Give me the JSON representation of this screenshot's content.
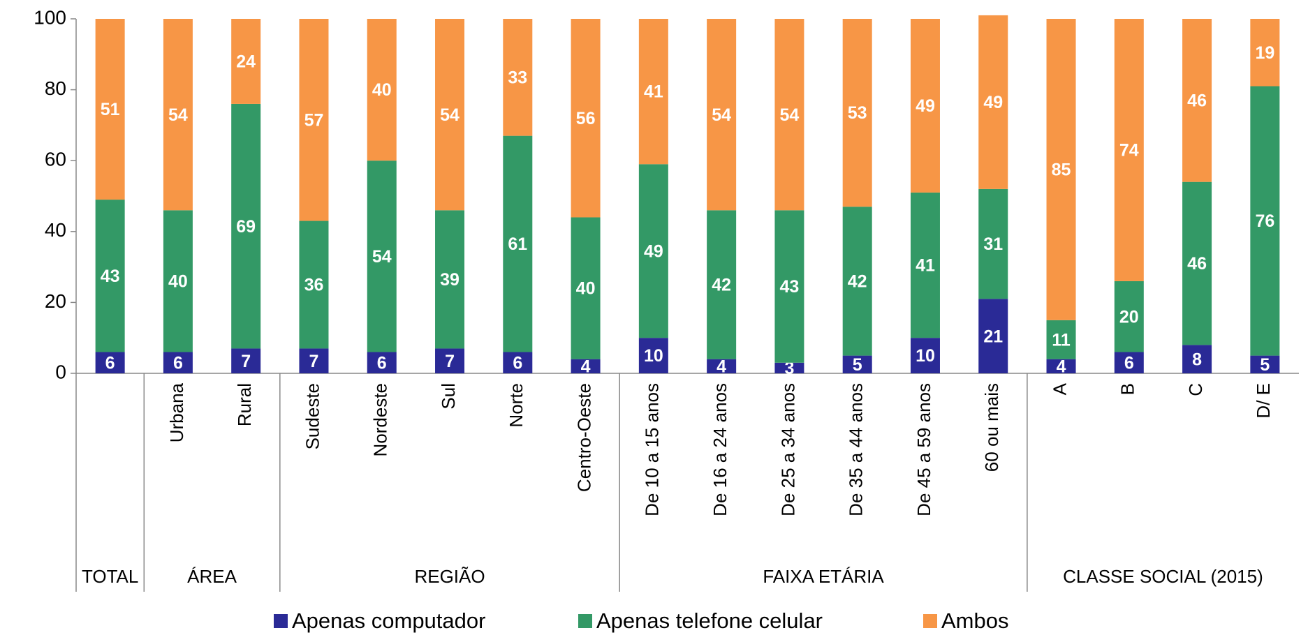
{
  "chart_data": {
    "type": "stacked_bar",
    "categories": [
      null,
      "Urbana",
      "Rural",
      "Sudeste",
      "Nordeste",
      "Sul",
      "Norte",
      "Centro-Oeste",
      "De 10 a 15 anos",
      "De 16 a 24 anos",
      "De 25 a 34 anos",
      "De 35 a 44 anos",
      "De 45 a 59 anos",
      "60 ou mais",
      "A",
      "B",
      "C",
      "D/ E"
    ],
    "groups": [
      {
        "name": "TOTAL",
        "count": 1
      },
      {
        "name": "ÁREA",
        "count": 2
      },
      {
        "name": "REGIÃO",
        "count": 5
      },
      {
        "name": "FAIXA ETÁRIA",
        "count": 6
      },
      {
        "name": "CLASSE SOCIAL (2015)",
        "count": 4
      }
    ],
    "series": [
      {
        "name": "Apenas computador",
        "color": "#2a2a96",
        "values": [
          6,
          6,
          7,
          7,
          6,
          7,
          6,
          4,
          10,
          4,
          3,
          5,
          10,
          21,
          4,
          6,
          8,
          5
        ]
      },
      {
        "name": "Apenas telefone celular",
        "color": "#339966",
        "values": [
          43,
          40,
          69,
          36,
          54,
          39,
          61,
          40,
          49,
          42,
          43,
          42,
          41,
          31,
          11,
          20,
          46,
          76
        ]
      },
      {
        "name": "Ambos",
        "color": "#f79646",
        "values": [
          51,
          54,
          24,
          57,
          40,
          54,
          33,
          56,
          41,
          54,
          54,
          53,
          49,
          49,
          85,
          74,
          46,
          19
        ]
      }
    ],
    "ylim": [
      0,
      100
    ],
    "yticks": [
      0,
      20,
      40,
      60,
      80,
      100
    ],
    "grid": false,
    "legend": "bottom"
  }
}
